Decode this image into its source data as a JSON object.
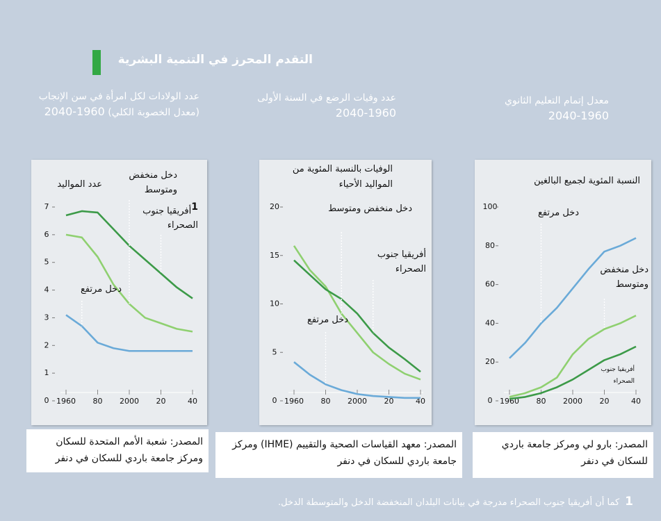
{
  "title": "التقدم المحرز في التنمية البشرية",
  "footnote": {
    "marker": "1",
    "text": "كما أن أفريقيا جنوب الصحراء مدرجة في بيانات البلدان المنخفضة الدخل والمتوسطة الدخل."
  },
  "chart_data": [
    {
      "type": "line",
      "title": "عدد الولادات لكل امرأة في سن الإنجاب (معدل الخصوبة الكلي)",
      "period": "2040-1960",
      "y_label": "عدد المواليد",
      "x": [
        1960,
        1970,
        1980,
        1990,
        2000,
        2010,
        2020,
        2030,
        2040
      ],
      "xlim": [
        1960,
        2040
      ],
      "xticks": [
        1960,
        {
          "value": 1980,
          "label": "80"
        },
        2000,
        {
          "value": 2020,
          "label": "20"
        },
        {
          "value": 2040,
          "label": "40"
        }
      ],
      "ylim": [
        0,
        7
      ],
      "yticks": [
        0,
        1,
        2,
        3,
        4,
        5,
        6,
        7
      ],
      "series": [
        {
          "name": "دخل منخفض ومتوسط",
          "color": "#8fd070",
          "values": [
            6.0,
            5.9,
            5.2,
            4.2,
            3.5,
            3.0,
            2.8,
            2.6,
            2.5
          ]
        },
        {
          "name": "أفريقيا جنوب الصحراء",
          "note_marker": "1",
          "color": "#3c9a48",
          "values": [
            6.7,
            6.85,
            6.8,
            6.2,
            5.6,
            5.1,
            4.6,
            4.1,
            3.7
          ]
        },
        {
          "name": "دخل مرتفع",
          "color": "#6aaad8",
          "values": [
            3.1,
            2.7,
            2.1,
            1.9,
            1.8,
            1.8,
            1.8,
            1.8,
            1.8
          ]
        }
      ],
      "source": "المصدر: شعبة الأمم المتحدة للسكان ومركز جامعة باردي للسكان في دنفر"
    },
    {
      "type": "line",
      "title": "عدد وفيات الرضع في السنة الأولى",
      "period": "2040-1960",
      "y_label": "الوفيات بالنسبة المئوية من المواليد الأحياء",
      "x": [
        1960,
        1970,
        1980,
        1990,
        2000,
        2010,
        2020,
        2030,
        2040
      ],
      "xlim": [
        1960,
        2040
      ],
      "xticks": [
        1960,
        {
          "value": 1980,
          "label": "80"
        },
        2000,
        {
          "value": 2020,
          "label": "20"
        },
        {
          "value": 2040,
          "label": "40"
        }
      ],
      "ylim": [
        0,
        20
      ],
      "yticks": [
        0,
        5,
        10,
        15,
        20
      ],
      "series": [
        {
          "name": "دخل منخفض ومتوسط",
          "color": "#8fd070",
          "values": [
            16,
            13.5,
            11.8,
            9,
            7,
            5,
            3.8,
            2.8,
            2.2
          ]
        },
        {
          "name": "أفريقيا جنوب الصحراء",
          "color": "#3c9a48",
          "values": [
            14.5,
            13,
            11.5,
            10.5,
            9,
            7,
            5.5,
            4.3,
            3.0
          ]
        },
        {
          "name": "دخل مرتفع",
          "color": "#6aaad8",
          "values": [
            4.0,
            2.7,
            1.7,
            1.1,
            0.7,
            0.5,
            0.4,
            0.3,
            0.3
          ]
        }
      ],
      "source": "المصدر: معهد القياسات الصحية والتقييم (IHME) ومركز جامعة باردي للسكان في دنفر"
    },
    {
      "type": "line",
      "title": "معدل إتمام التعليم الثانوي",
      "period": "2040-1960",
      "y_label": "النسبة المئوية لجميع البالغين",
      "x": [
        1960,
        1970,
        1980,
        1990,
        2000,
        2010,
        2020,
        2030,
        2040
      ],
      "xlim": [
        1960,
        2040
      ],
      "xticks": [
        1960,
        {
          "value": 1980,
          "label": "80"
        },
        2000,
        {
          "value": 2020,
          "label": "20"
        },
        {
          "value": 2040,
          "label": "40"
        }
      ],
      "ylim": [
        0,
        100
      ],
      "yticks": [
        0,
        20,
        40,
        60,
        80,
        100
      ],
      "series": [
        {
          "name": "دخل منخفض ومتوسط",
          "color": "#8fd070",
          "values": [
            2,
            4,
            7,
            12,
            24,
            32,
            37,
            40,
            44
          ]
        },
        {
          "name": "أفريقيا جنوب الصحراء",
          "color": "#3c9a48",
          "values": [
            1,
            2,
            4,
            7,
            11,
            16,
            21,
            24,
            28
          ]
        },
        {
          "name": "دخل مرتفع",
          "color": "#6aaad8",
          "values": [
            22,
            30,
            40,
            48,
            58,
            68,
            77,
            80,
            84
          ]
        }
      ],
      "source": "المصدر: بارو لي ومركز جامعة باردي للسكان في دنفر"
    }
  ]
}
